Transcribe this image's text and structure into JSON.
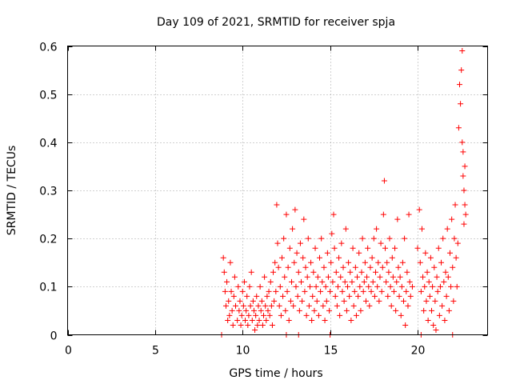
{
  "chart_data": {
    "type": "scatter",
    "title": "Day 109 of 2021, SRMTID for receiver spja",
    "xlabel": "GPS time / hours",
    "ylabel": "SRMTID / TECUs",
    "xlim": [
      0,
      24
    ],
    "ylim": [
      0,
      0.6
    ],
    "grid": true,
    "x_ticks": [
      0,
      5,
      10,
      15,
      20
    ],
    "x_tick_labels": [
      "0",
      "5",
      "10",
      "15",
      "20"
    ],
    "y_ticks": [
      0,
      0.1,
      0.2,
      0.3,
      0.4,
      0.5,
      0.6
    ],
    "y_tick_labels": [
      "0",
      "0.1",
      "0.2",
      "0.3",
      "0.4",
      "0.5",
      "0.6"
    ],
    "marker": "plus",
    "series": [
      {
        "name": "SRMTID",
        "color": "#ff0000",
        "points": [
          [
            8.8,
            0.0
          ],
          [
            8.9,
            0.16
          ],
          [
            8.95,
            0.13
          ],
          [
            9.0,
            0.09
          ],
          [
            9.05,
            0.06
          ],
          [
            9.1,
            0.11
          ],
          [
            9.15,
            0.03
          ],
          [
            9.2,
            0.07
          ],
          [
            9.25,
            0.04
          ],
          [
            9.3,
            0.15
          ],
          [
            9.35,
            0.09
          ],
          [
            9.4,
            0.05
          ],
          [
            9.45,
            0.02
          ],
          [
            9.5,
            0.08
          ],
          [
            9.55,
            0.12
          ],
          [
            9.6,
            0.06
          ],
          [
            9.7,
            0.03
          ],
          [
            9.75,
            0.1
          ],
          [
            9.8,
            0.05
          ],
          [
            9.85,
            0.07
          ],
          [
            9.9,
            0.02
          ],
          [
            9.95,
            0.04
          ],
          [
            10.0,
            0.09
          ],
          [
            10.05,
            0.06
          ],
          [
            10.1,
            0.11
          ],
          [
            10.15,
            0.03
          ],
          [
            10.2,
            0.05
          ],
          [
            10.25,
            0.08
          ],
          [
            10.3,
            0.02
          ],
          [
            10.35,
            0.04
          ],
          [
            10.4,
            0.1
          ],
          [
            10.45,
            0.06
          ],
          [
            10.5,
            0.13
          ],
          [
            10.55,
            0.03
          ],
          [
            10.6,
            0.07
          ],
          [
            10.65,
            0.05
          ],
          [
            10.7,
            0.01
          ],
          [
            10.75,
            0.04
          ],
          [
            10.8,
            0.08
          ],
          [
            10.85,
            0.02
          ],
          [
            10.9,
            0.06
          ],
          [
            10.95,
            0.03
          ],
          [
            11.0,
            0.1
          ],
          [
            11.05,
            0.05
          ],
          [
            11.1,
            0.07
          ],
          [
            11.15,
            0.02
          ],
          [
            11.2,
            0.04
          ],
          [
            11.25,
            0.12
          ],
          [
            11.3,
            0.06
          ],
          [
            11.35,
            0.03
          ],
          [
            11.4,
            0.08
          ],
          [
            11.45,
            0.05
          ],
          [
            11.5,
            0.09
          ],
          [
            11.55,
            0.04
          ],
          [
            11.6,
            0.11
          ],
          [
            11.65,
            0.06
          ],
          [
            11.7,
            0.02
          ],
          [
            11.75,
            0.13
          ],
          [
            11.8,
            0.07
          ],
          [
            11.85,
            0.15
          ],
          [
            11.9,
            0.09
          ],
          [
            11.95,
            0.27
          ],
          [
            12.0,
            0.19
          ],
          [
            12.05,
            0.14
          ],
          [
            12.1,
            0.06
          ],
          [
            12.15,
            0.1
          ],
          [
            12.2,
            0.04
          ],
          [
            12.25,
            0.16
          ],
          [
            12.3,
            0.08
          ],
          [
            12.35,
            0.2
          ],
          [
            12.4,
            0.12
          ],
          [
            12.45,
            0.05
          ],
          [
            12.5,
            0.25
          ],
          [
            12.55,
            0.09
          ],
          [
            12.6,
            0.14
          ],
          [
            12.65,
            0.03
          ],
          [
            12.7,
            0.18
          ],
          [
            12.75,
            0.07
          ],
          [
            12.8,
            0.11
          ],
          [
            12.85,
            0.22
          ],
          [
            12.9,
            0.06
          ],
          [
            12.95,
            0.15
          ],
          [
            13.0,
            0.26
          ],
          [
            13.05,
            0.1
          ],
          [
            13.1,
            0.17
          ],
          [
            13.15,
            0.08
          ],
          [
            13.2,
            0.13
          ],
          [
            13.25,
            0.05
          ],
          [
            13.3,
            0.19
          ],
          [
            13.35,
            0.11
          ],
          [
            13.4,
            0.07
          ],
          [
            13.45,
            0.16
          ],
          [
            13.5,
            0.24
          ],
          [
            13.55,
            0.09
          ],
          [
            13.6,
            0.14
          ],
          [
            13.65,
            0.04
          ],
          [
            13.7,
            0.12
          ],
          [
            13.75,
            0.2
          ],
          [
            13.8,
            0.06
          ],
          [
            13.85,
            0.1
          ],
          [
            13.9,
            0.15
          ],
          [
            13.95,
            0.03
          ],
          [
            14.0,
            0.08
          ],
          [
            14.05,
            0.13
          ],
          [
            14.1,
            0.05
          ],
          [
            14.15,
            0.18
          ],
          [
            14.2,
            0.1
          ],
          [
            14.25,
            0.07
          ],
          [
            14.3,
            0.12
          ],
          [
            14.35,
            0.04
          ],
          [
            14.4,
            0.16
          ],
          [
            14.45,
            0.09
          ],
          [
            14.5,
            0.2
          ],
          [
            14.55,
            0.11
          ],
          [
            14.6,
            0.06
          ],
          [
            14.65,
            0.14
          ],
          [
            14.7,
            0.03
          ],
          [
            14.75,
            0.1
          ],
          [
            14.8,
            0.07
          ],
          [
            14.85,
            0.17
          ],
          [
            14.9,
            0.12
          ],
          [
            14.95,
            0.05
          ],
          [
            15.0,
            0.09
          ],
          [
            15.05,
            0.15
          ],
          [
            15.1,
            0.21
          ],
          [
            15.15,
            0.11
          ],
          [
            15.2,
            0.25
          ],
          [
            15.25,
            0.18
          ],
          [
            15.3,
            0.08
          ],
          [
            15.35,
            0.13
          ],
          [
            15.4,
            0.06
          ],
          [
            15.45,
            0.1
          ],
          [
            15.5,
            0.16
          ],
          [
            15.55,
            0.04
          ],
          [
            15.6,
            0.12
          ],
          [
            15.65,
            0.19
          ],
          [
            15.7,
            0.09
          ],
          [
            15.75,
            0.14
          ],
          [
            15.8,
            0.07
          ],
          [
            15.85,
            0.11
          ],
          [
            15.9,
            0.22
          ],
          [
            15.95,
            0.05
          ],
          [
            16.0,
            0.1
          ],
          [
            16.05,
            0.15
          ],
          [
            16.1,
            0.08
          ],
          [
            16.15,
            0.13
          ],
          [
            16.2,
            0.03
          ],
          [
            16.25,
            0.11
          ],
          [
            16.3,
            0.18
          ],
          [
            16.35,
            0.06
          ],
          [
            16.4,
            0.09
          ],
          [
            16.45,
            0.14
          ],
          [
            16.5,
            0.04
          ],
          [
            16.55,
            0.12
          ],
          [
            16.6,
            0.08
          ],
          [
            16.65,
            0.17
          ],
          [
            16.7,
            0.1
          ],
          [
            16.75,
            0.05
          ],
          [
            16.8,
            0.13
          ],
          [
            16.85,
            0.2
          ],
          [
            16.9,
            0.09
          ],
          [
            16.95,
            0.11
          ],
          [
            17.0,
            0.15
          ],
          [
            17.05,
            0.07
          ],
          [
            17.1,
            0.12
          ],
          [
            17.15,
            0.18
          ],
          [
            17.2,
            0.1
          ],
          [
            17.25,
            0.06
          ],
          [
            17.3,
            0.14
          ],
          [
            17.35,
            0.09
          ],
          [
            17.4,
            0.16
          ],
          [
            17.45,
            0.11
          ],
          [
            17.5,
            0.2
          ],
          [
            17.55,
            0.08
          ],
          [
            17.6,
            0.13
          ],
          [
            17.65,
            0.22
          ],
          [
            17.7,
            0.1
          ],
          [
            17.75,
            0.15
          ],
          [
            17.8,
            0.07
          ],
          [
            17.85,
            0.12
          ],
          [
            17.9,
            0.19
          ],
          [
            17.95,
            0.09
          ],
          [
            18.0,
            0.14
          ],
          [
            18.05,
            0.25
          ],
          [
            18.1,
            0.32
          ],
          [
            18.15,
            0.18
          ],
          [
            18.2,
            0.11
          ],
          [
            18.25,
            0.15
          ],
          [
            18.3,
            0.08
          ],
          [
            18.35,
            0.13
          ],
          [
            18.4,
            0.2
          ],
          [
            18.45,
            0.1
          ],
          [
            18.5,
            0.06
          ],
          [
            18.55,
            0.16
          ],
          [
            18.6,
            0.12
          ],
          [
            18.65,
            0.09
          ],
          [
            18.7,
            0.18
          ],
          [
            18.75,
            0.05
          ],
          [
            18.8,
            0.11
          ],
          [
            18.85,
            0.24
          ],
          [
            18.9,
            0.14
          ],
          [
            18.95,
            0.08
          ],
          [
            19.0,
            0.12
          ],
          [
            19.05,
            0.04
          ],
          [
            19.1,
            0.1
          ],
          [
            19.15,
            0.15
          ],
          [
            19.2,
            0.07
          ],
          [
            19.25,
            0.2
          ],
          [
            19.3,
            0.02
          ],
          [
            19.35,
            0.09
          ],
          [
            19.4,
            0.13
          ],
          [
            19.45,
            0.06
          ],
          [
            19.5,
            0.25
          ],
          [
            19.55,
            0.11
          ],
          [
            19.6,
            0.08
          ],
          [
            19.7,
            0.1
          ],
          [
            20.0,
            0.18
          ],
          [
            20.1,
            0.26
          ],
          [
            20.15,
            0.15
          ],
          [
            20.2,
            0.09
          ],
          [
            20.25,
            0.22
          ],
          [
            20.3,
            0.12
          ],
          [
            20.35,
            0.05
          ],
          [
            20.4,
            0.1
          ],
          [
            20.45,
            0.17
          ],
          [
            20.5,
            0.07
          ],
          [
            20.55,
            0.13
          ],
          [
            20.6,
            0.03
          ],
          [
            20.65,
            0.11
          ],
          [
            20.7,
            0.08
          ],
          [
            20.75,
            0.16
          ],
          [
            20.8,
            0.05
          ],
          [
            20.85,
            0.1
          ],
          [
            20.9,
            0.02
          ],
          [
            20.95,
            0.14
          ],
          [
            21.0,
            0.07
          ],
          [
            21.05,
            0.01
          ],
          [
            21.1,
            0.12
          ],
          [
            21.15,
            0.09
          ],
          [
            21.2,
            0.18
          ],
          [
            21.25,
            0.04
          ],
          [
            21.3,
            0.1
          ],
          [
            21.35,
            0.15
          ],
          [
            21.4,
            0.06
          ],
          [
            21.45,
            0.2
          ],
          [
            21.5,
            0.11
          ],
          [
            21.55,
            0.03
          ],
          [
            21.6,
            0.13
          ],
          [
            21.65,
            0.08
          ],
          [
            21.7,
            0.22
          ],
          [
            21.75,
            0.12
          ],
          [
            21.8,
            0.05
          ],
          [
            21.85,
            0.17
          ],
          [
            21.9,
            0.1
          ],
          [
            21.95,
            0.24
          ],
          [
            22.0,
            0.14
          ],
          [
            22.05,
            0.07
          ],
          [
            22.1,
            0.2
          ],
          [
            22.15,
            0.27
          ],
          [
            22.2,
            0.16
          ],
          [
            22.25,
            0.1
          ],
          [
            22.3,
            0.19
          ],
          [
            22.35,
            0.43
          ],
          [
            22.4,
            0.52
          ],
          [
            22.45,
            0.48
          ],
          [
            22.5,
            0.55
          ],
          [
            22.55,
            0.4
          ],
          [
            22.55,
            0.59
          ],
          [
            22.6,
            0.33
          ],
          [
            22.6,
            0.38
          ],
          [
            22.65,
            0.3
          ],
          [
            22.65,
            0.23
          ],
          [
            22.7,
            0.27
          ],
          [
            22.7,
            0.35
          ],
          [
            22.75,
            0.25
          ],
          [
            20.2,
            0.0
          ],
          [
            22.0,
            0.0
          ],
          [
            15.0,
            0.0
          ],
          [
            13.2,
            0.0
          ],
          [
            12.5,
            0.0
          ]
        ]
      }
    ]
  }
}
